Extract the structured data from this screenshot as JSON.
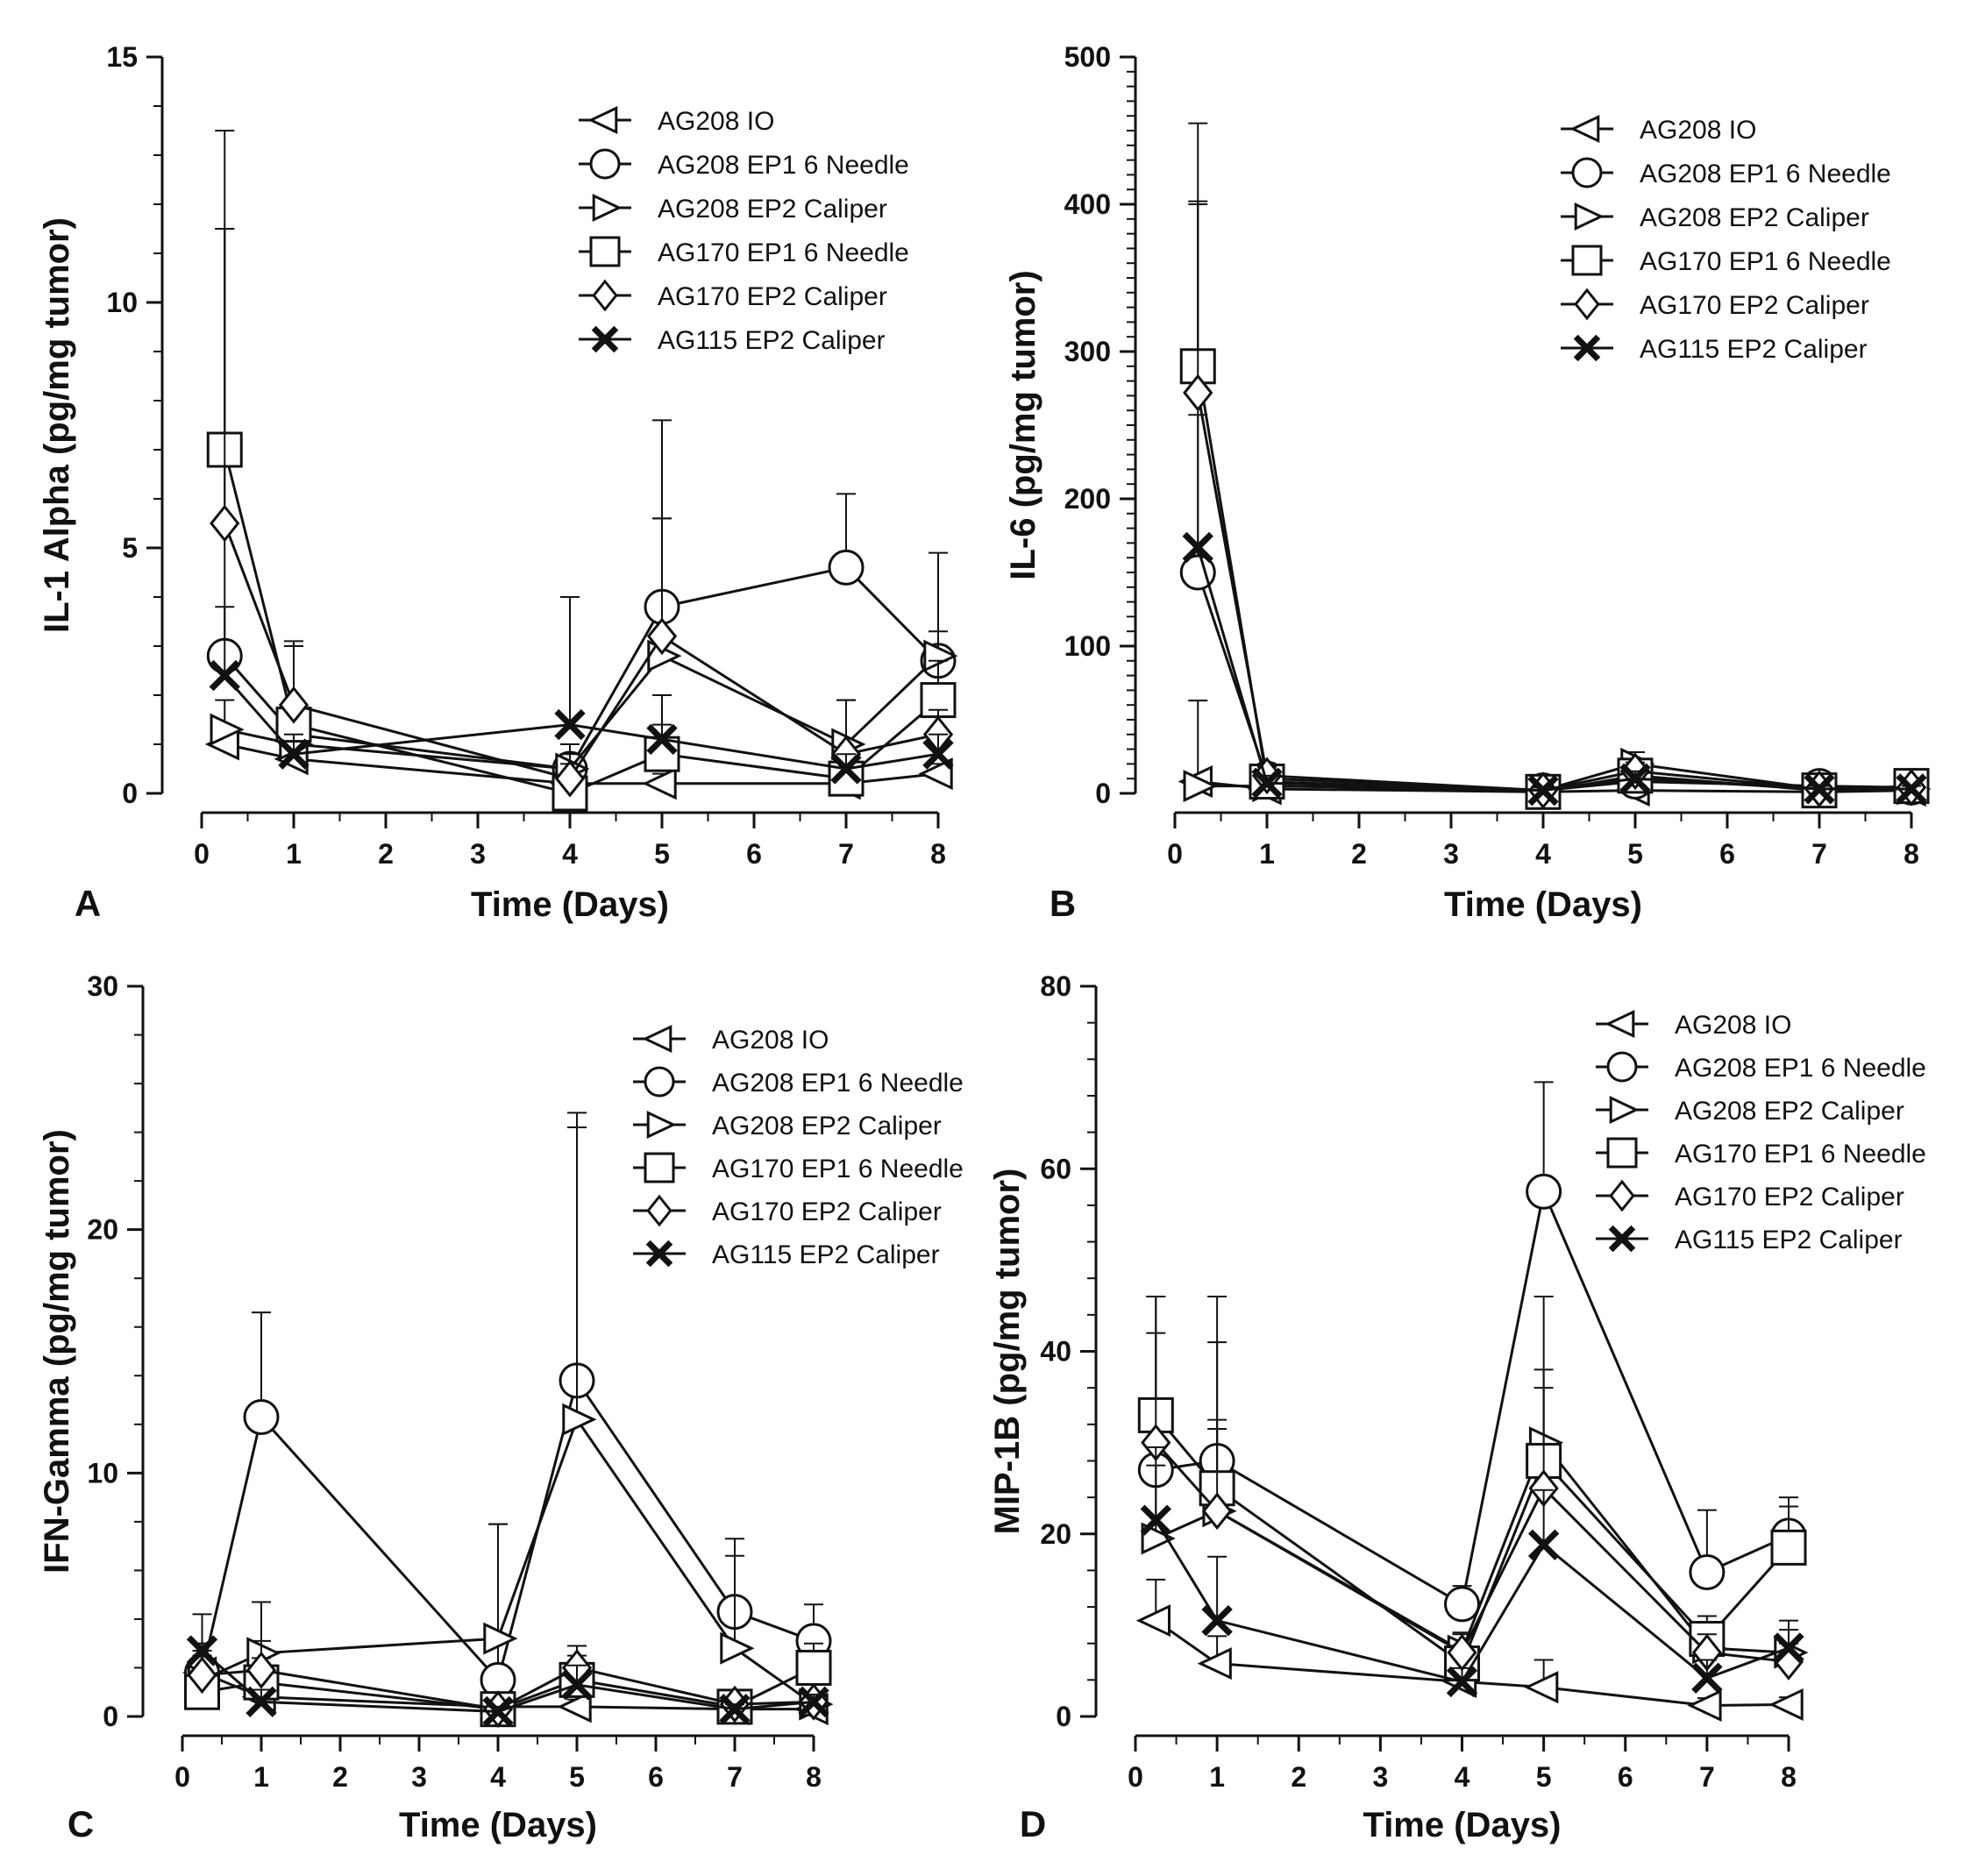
{
  "chart_data": [
    {
      "panel": "A",
      "type": "line",
      "xlabel": "Time (Days)",
      "ylabel": "IL-1 Alpha (pg/mg tumor)",
      "xlim": [
        0,
        8
      ],
      "ylim": [
        0,
        15
      ],
      "xticks": [
        0,
        1,
        2,
        3,
        4,
        5,
        6,
        7,
        8
      ],
      "yticks": [
        0,
        5,
        10,
        15
      ],
      "legend_position": "top-right",
      "series": [
        {
          "name": "AG208 IO",
          "marker": "triangle-left",
          "x": [
            0.25,
            1,
            4,
            5,
            7,
            8
          ],
          "y": [
            1.0,
            0.7,
            0.2,
            0.2,
            0.2,
            0.4
          ],
          "err": [
            0.3,
            0.3,
            0.2,
            0.2,
            0.2,
            0.2
          ]
        },
        {
          "name": "AG208 EP1 6 Needle",
          "marker": "circle",
          "x": [
            0.25,
            1,
            4,
            5,
            7,
            8
          ],
          "y": [
            2.8,
            1.2,
            0.5,
            3.8,
            4.6,
            2.7
          ],
          "err": [
            8.7,
            1.8,
            0.5,
            3.8,
            1.5,
            2.2
          ]
        },
        {
          "name": "AG208 EP2 Caliper",
          "marker": "triangle-right",
          "x": [
            0.25,
            1,
            4,
            5,
            7,
            8
          ],
          "y": [
            1.3,
            1.0,
            0.5,
            2.8,
            1.0,
            2.8
          ],
          "err": [
            0.6,
            0.8,
            0.3,
            2.8,
            0.9,
            0.5
          ]
        },
        {
          "name": "AG170 EP1 6 Needle",
          "marker": "square",
          "x": [
            0.25,
            1,
            4,
            5,
            7,
            8
          ],
          "y": [
            7.0,
            1.4,
            0.0,
            0.8,
            0.3,
            1.9
          ],
          "err": [
            6.5,
            1.6,
            0.3,
            0.6,
            0.3,
            0.8
          ]
        },
        {
          "name": "AG170 EP2 Caliper",
          "marker": "diamond",
          "x": [
            0.25,
            1,
            4,
            5,
            7,
            8
          ],
          "y": [
            5.5,
            1.8,
            0.3,
            3.2,
            0.8,
            1.2
          ],
          "err": [
            6.0,
            1.3,
            0.3,
            2.4,
            1.1,
            0.5
          ]
        },
        {
          "name": "AG115 EP2 Caliper",
          "marker": "x",
          "x": [
            0.25,
            1,
            4,
            5,
            7,
            8
          ],
          "y": [
            2.4,
            0.8,
            1.4,
            1.1,
            0.5,
            0.8
          ],
          "err": [
            1.4,
            0.4,
            2.6,
            0.9,
            0.3,
            0.4
          ]
        }
      ]
    },
    {
      "panel": "B",
      "type": "line",
      "xlabel": "Time (Days)",
      "ylabel": "IL-6 (pg/mg tumor)",
      "xlim": [
        0,
        8
      ],
      "ylim": [
        0,
        500
      ],
      "xticks": [
        0,
        1,
        2,
        3,
        4,
        5,
        6,
        7,
        8
      ],
      "yticks": [
        0,
        100,
        200,
        300,
        400,
        500
      ],
      "legend_position": "top-right",
      "series": [
        {
          "name": "AG208 IO",
          "marker": "triangle-left",
          "x": [
            0.25,
            1,
            4,
            5,
            7,
            8
          ],
          "y": [
            8,
            3,
            1,
            2,
            1,
            2
          ],
          "err": [
            55,
            4,
            1,
            3,
            1,
            2
          ]
        },
        {
          "name": "AG208 EP1 6 Needle",
          "marker": "circle",
          "x": [
            0.25,
            1,
            4,
            5,
            7,
            8
          ],
          "y": [
            150,
            10,
            2,
            8,
            5,
            4
          ],
          "err": [
            250,
            6,
            2,
            6,
            3,
            3
          ]
        },
        {
          "name": "AG208 EP2 Caliper",
          "marker": "triangle-right",
          "x": [
            0.25,
            1,
            4,
            5,
            7,
            8
          ],
          "y": [
            5,
            5,
            2,
            20,
            3,
            3
          ],
          "err": [
            3,
            4,
            2,
            8,
            2,
            2
          ]
        },
        {
          "name": "AG170 EP1 6 Needle",
          "marker": "square",
          "x": [
            0.25,
            1,
            4,
            5,
            7,
            8
          ],
          "y": [
            290,
            8,
            1,
            12,
            2,
            5
          ],
          "err": [
            165,
            6,
            1,
            7,
            2,
            3
          ]
        },
        {
          "name": "AG170 EP2 Caliper",
          "marker": "diamond",
          "x": [
            0.25,
            1,
            4,
            5,
            7,
            8
          ],
          "y": [
            272,
            12,
            2,
            15,
            3,
            4
          ],
          "err": [
            130,
            6,
            2,
            6,
            2,
            3
          ]
        },
        {
          "name": "AG115 EP2 Caliper",
          "marker": "x",
          "x": [
            0.25,
            1,
            4,
            5,
            7,
            8
          ],
          "y": [
            167,
            7,
            2,
            10,
            3,
            3
          ],
          "err": [
            90,
            5,
            2,
            5,
            2,
            2
          ]
        }
      ]
    },
    {
      "panel": "C",
      "type": "line",
      "xlabel": "Time (Days)",
      "ylabel": "IFN-Gamma (pg/mg tumor)",
      "xlim": [
        0,
        8
      ],
      "ylim": [
        0,
        30
      ],
      "xticks": [
        0,
        1,
        2,
        3,
        4,
        5,
        6,
        7,
        8
      ],
      "yticks": [
        0,
        10,
        20,
        30
      ],
      "legend_position": "top-right",
      "series": [
        {
          "name": "AG208 IO",
          "marker": "triangle-left",
          "x": [
            0.25,
            1,
            4,
            5,
            7,
            8
          ],
          "y": [
            1.8,
            0.8,
            0.4,
            0.4,
            0.3,
            0.3
          ],
          "err": [
            1.2,
            0.8,
            0.3,
            0.3,
            0.2,
            0.2
          ]
        },
        {
          "name": "AG208 EP1 6 Needle",
          "marker": "circle",
          "x": [
            0.25,
            1,
            4,
            5,
            7,
            8
          ],
          "y": [
            1.8,
            12.3,
            1.5,
            13.8,
            4.3,
            3.1
          ],
          "err": [
            1.2,
            4.3,
            6.4,
            11.0,
            3.0,
            1.5
          ]
        },
        {
          "name": "AG208 EP2 Caliper",
          "marker": "triangle-right",
          "x": [
            0.25,
            1,
            4,
            5,
            7,
            8
          ],
          "y": [
            1.5,
            2.6,
            3.2,
            12.2,
            2.8,
            0.5
          ],
          "err": [
            1.0,
            2.1,
            4.7,
            12.0,
            3.8,
            0.4
          ]
        },
        {
          "name": "AG170 EP1 6 Needle",
          "marker": "square",
          "x": [
            0.25,
            1,
            4,
            5,
            7,
            8
          ],
          "y": [
            1.0,
            1.4,
            0.3,
            1.5,
            0.4,
            2.0
          ],
          "err": [
            0.8,
            1.0,
            0.3,
            1.0,
            0.3,
            1.0
          ]
        },
        {
          "name": "AG170 EP2 Caliper",
          "marker": "diamond",
          "x": [
            0.25,
            1,
            4,
            5,
            7,
            8
          ],
          "y": [
            1.7,
            1.9,
            0.3,
            2.0,
            0.5,
            0.6
          ],
          "err": [
            1.0,
            1.2,
            0.3,
            0.9,
            0.3,
            0.4
          ]
        },
        {
          "name": "AG115 EP2 Caliper",
          "marker": "x",
          "x": [
            0.25,
            1,
            4,
            5,
            7,
            8
          ],
          "y": [
            2.7,
            0.6,
            0.2,
            1.3,
            0.3,
            0.6
          ],
          "err": [
            1.5,
            0.5,
            0.2,
            0.8,
            0.2,
            0.3
          ]
        }
      ]
    },
    {
      "panel": "D",
      "type": "line",
      "xlabel": "Time (Days)",
      "ylabel": "MIP-1B (pg/mg tumor)",
      "xlim": [
        0,
        8
      ],
      "ylim": [
        0,
        80
      ],
      "xticks": [
        0,
        1,
        2,
        3,
        4,
        5,
        6,
        7,
        8
      ],
      "yticks": [
        0,
        20,
        40,
        60,
        80
      ],
      "legend_position": "top-right",
      "series": [
        {
          "name": "AG208 IO",
          "marker": "triangle-left",
          "x": [
            0.25,
            1,
            4,
            5,
            7,
            8
          ],
          "y": [
            10.5,
            5.8,
            3.8,
            3.2,
            1.2,
            1.3
          ],
          "err": [
            4.5,
            3.0,
            1.5,
            3.0,
            0.8,
            0.8
          ]
        },
        {
          "name": "AG208 EP1 6 Needle",
          "marker": "circle",
          "x": [
            0.25,
            1,
            4,
            5,
            7,
            8
          ],
          "y": [
            27.0,
            28.0,
            12.3,
            57.5,
            15.8,
            19.8
          ],
          "err": [
            19.0,
            18.0,
            2.0,
            12.0,
            6.8,
            4.2
          ]
        },
        {
          "name": "AG208 EP2 Caliper",
          "marker": "triangle-right",
          "x": [
            0.25,
            1,
            4,
            5,
            7,
            8
          ],
          "y": [
            19.5,
            22.5,
            7.2,
            30.0,
            7.5,
            7.0
          ],
          "err": [
            8.0,
            9.0,
            2.0,
            8.0,
            2.5,
            2.5
          ]
        },
        {
          "name": "AG170 EP1 6 Needle",
          "marker": "square",
          "x": [
            0.25,
            1,
            4,
            5,
            7,
            8
          ],
          "y": [
            33.0,
            25.0,
            5.8,
            28.0,
            8.5,
            18.5
          ],
          "err": [
            13.0,
            16.0,
            2.0,
            18.0,
            2.5,
            4.5
          ]
        },
        {
          "name": "AG170 EP2 Caliper",
          "marker": "diamond",
          "x": [
            0.25,
            1,
            4,
            5,
            7,
            8
          ],
          "y": [
            30.0,
            22.5,
            7.0,
            25.0,
            7.0,
            6.0
          ],
          "err": [
            12.0,
            10.0,
            2.0,
            11.0,
            2.0,
            2.0
          ]
        },
        {
          "name": "AG115 EP2 Caliper",
          "marker": "x",
          "x": [
            0.25,
            1,
            4,
            5,
            7,
            8
          ],
          "y": [
            21.5,
            10.5,
            3.8,
            18.8,
            4.2,
            7.5
          ],
          "err": [
            8.0,
            7.0,
            1.5,
            6.0,
            2.0,
            3.0
          ]
        }
      ]
    }
  ]
}
